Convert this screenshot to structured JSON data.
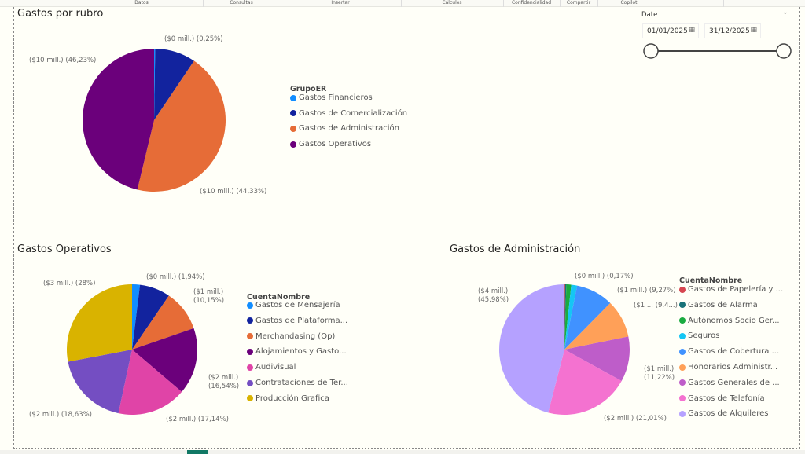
{
  "ribbon": {
    "tabs": [
      "Datos",
      "Consultas",
      "Insertar",
      "Cálculos",
      "Confidencialidad",
      "Compartir",
      "Copilot"
    ]
  },
  "slicer": {
    "label": "Date",
    "start": "01/01/2025",
    "end": "31/12/2025",
    "range_fraction": [
      0,
      1
    ]
  },
  "icons": {
    "calendar": "calendar-icon",
    "chevron": "chevron-down-icon"
  },
  "chart_data": [
    {
      "type": "pie",
      "title": "Gastos por rubro",
      "legend_title": "GrupoER",
      "legend_placement": "right",
      "categories": [
        "Gastos Financieros",
        "Gastos de Comercialización",
        "Gastos de Administración",
        "Gastos Operativos"
      ],
      "values": [
        0.25,
        9.19,
        44.33,
        46.23
      ],
      "colors": [
        "#118DFF",
        "#12239E",
        "#E66C37",
        "#6B007B"
      ],
      "labels": [
        "($0 mill.) (0,25%)",
        "",
        "($10 mill.) (44,33%)",
        "($10 mill.) (46,23%)"
      ]
    },
    {
      "type": "pie",
      "title": "Gastos Operativos",
      "legend_title": "CuentaNombre",
      "legend_placement": "right",
      "categories": [
        "Gastos de Mensajería",
        "Gastos de Plataforma...",
        "Merchandasing (Op)",
        "Alojamientos y Gasto...",
        "Audivisual",
        "Contrataciones de Ter...",
        "Producción Grafica"
      ],
      "values": [
        1.94,
        7.6,
        10.15,
        16.54,
        17.14,
        18.63,
        28
      ],
      "colors": [
        "#118DFF",
        "#12239E",
        "#E66C37",
        "#6B007B",
        "#E044A7",
        "#744EC2",
        "#D9B300"
      ],
      "labels": [
        "($0 mill.) (1,94%)",
        "",
        "($1 mill.) (10,15%)",
        "($2 mill.) (16,54%)",
        "($2 mill.) (17,14%)",
        "($2 mill.) (18,63%)",
        "($3 mill.) (28%)"
      ]
    },
    {
      "type": "pie",
      "title": "Gastos de Administración",
      "legend_title": "CuentaNombre",
      "legend_placement": "right",
      "categories": [
        "Gastos de Papelería y ...",
        "Gastos de Alarma",
        "Autónomos Socio Ger...",
        "Seguros",
        "Gastos de Cobertura ...",
        "Honorarios Administr...",
        "Gastos Generales de ...",
        "Gastos de Telefonía",
        "Gastos de Alquileres"
      ],
      "values": [
        0.17,
        0.3,
        1.2,
        1.45,
        9.27,
        9.4,
        11.22,
        21.01,
        45.98
      ],
      "colors": [
        "#D64550",
        "#197278",
        "#1AAB40",
        "#15C6F4",
        "#4092FF",
        "#FFA058",
        "#BE5DC9",
        "#F472D0",
        "#B5A1FF"
      ],
      "labels": [
        "($0 mill.) (0,17%)",
        "",
        "",
        "",
        "($1 mill.) (9,27%)",
        "($1 ... (9,4...)",
        "($1 mill.) (11,22%)",
        "($2 mill.) (21,01%)",
        "($4 mill.) (45,98%)"
      ]
    }
  ]
}
